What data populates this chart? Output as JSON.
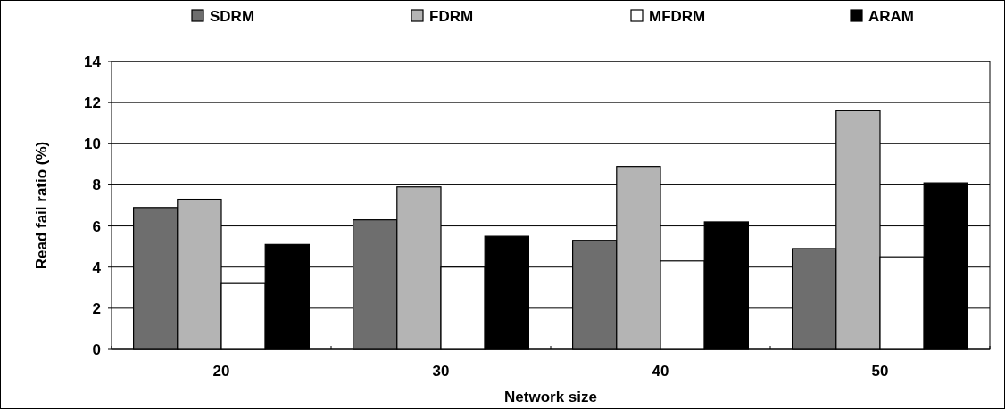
{
  "chart_data": {
    "type": "bar",
    "xlabel": "Network size",
    "ylabel": "Read fail ratio (%)",
    "categories": [
      "20",
      "30",
      "40",
      "50"
    ],
    "series": [
      {
        "name": "SDRM",
        "color": "#6e6e6e",
        "values": [
          6.9,
          6.3,
          5.3,
          4.9
        ]
      },
      {
        "name": "FDRM",
        "color": "#b4b4b4",
        "values": [
          7.3,
          7.9,
          8.9,
          11.6
        ]
      },
      {
        "name": "MFDRM",
        "color": "#ffffff",
        "values": [
          3.2,
          4.0,
          4.3,
          4.5
        ]
      },
      {
        "name": "ARAM",
        "color": "#000000",
        "values": [
          5.1,
          5.5,
          6.2,
          8.1
        ]
      }
    ],
    "ylim": [
      0,
      14
    ],
    "yticks": [
      0,
      2,
      4,
      6,
      8,
      10,
      12,
      14
    ],
    "grid": "y",
    "legend": "top"
  }
}
